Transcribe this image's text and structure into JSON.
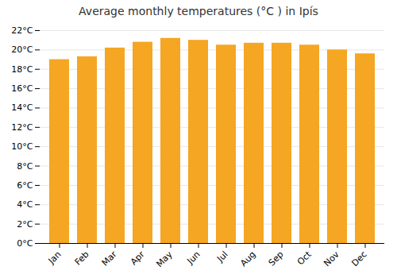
{
  "chart_data": {
    "type": "bar",
    "title": "Average monthly temperatures (°C ) in Ipís",
    "categories": [
      "Jan",
      "Feb",
      "Mar",
      "Apr",
      "May",
      "Jun",
      "Jul",
      "Aug",
      "Sep",
      "Oct",
      "Nov",
      "Dec"
    ],
    "values": [
      19.0,
      19.3,
      20.2,
      20.8,
      21.2,
      21.0,
      20.5,
      20.7,
      20.7,
      20.5,
      20.0,
      19.6
    ],
    "color": "#F5A623",
    "ylim": [
      0,
      22
    ],
    "yticks": [
      {
        "value": 0,
        "label": "0°C"
      },
      {
        "value": 2,
        "label": "2°C"
      },
      {
        "value": 4,
        "label": "4°C"
      },
      {
        "value": 6,
        "label": "6°C"
      },
      {
        "value": 8,
        "label": "8°C"
      },
      {
        "value": 10,
        "label": "10°C"
      },
      {
        "value": 12,
        "label": "12°C"
      },
      {
        "value": 14,
        "label": "14°C"
      },
      {
        "value": 16,
        "label": "16°C"
      },
      {
        "value": 18,
        "label": "18°C"
      },
      {
        "value": 20,
        "label": "20°C"
      },
      {
        "value": 22,
        "label": "22°C"
      }
    ],
    "grid": true
  }
}
